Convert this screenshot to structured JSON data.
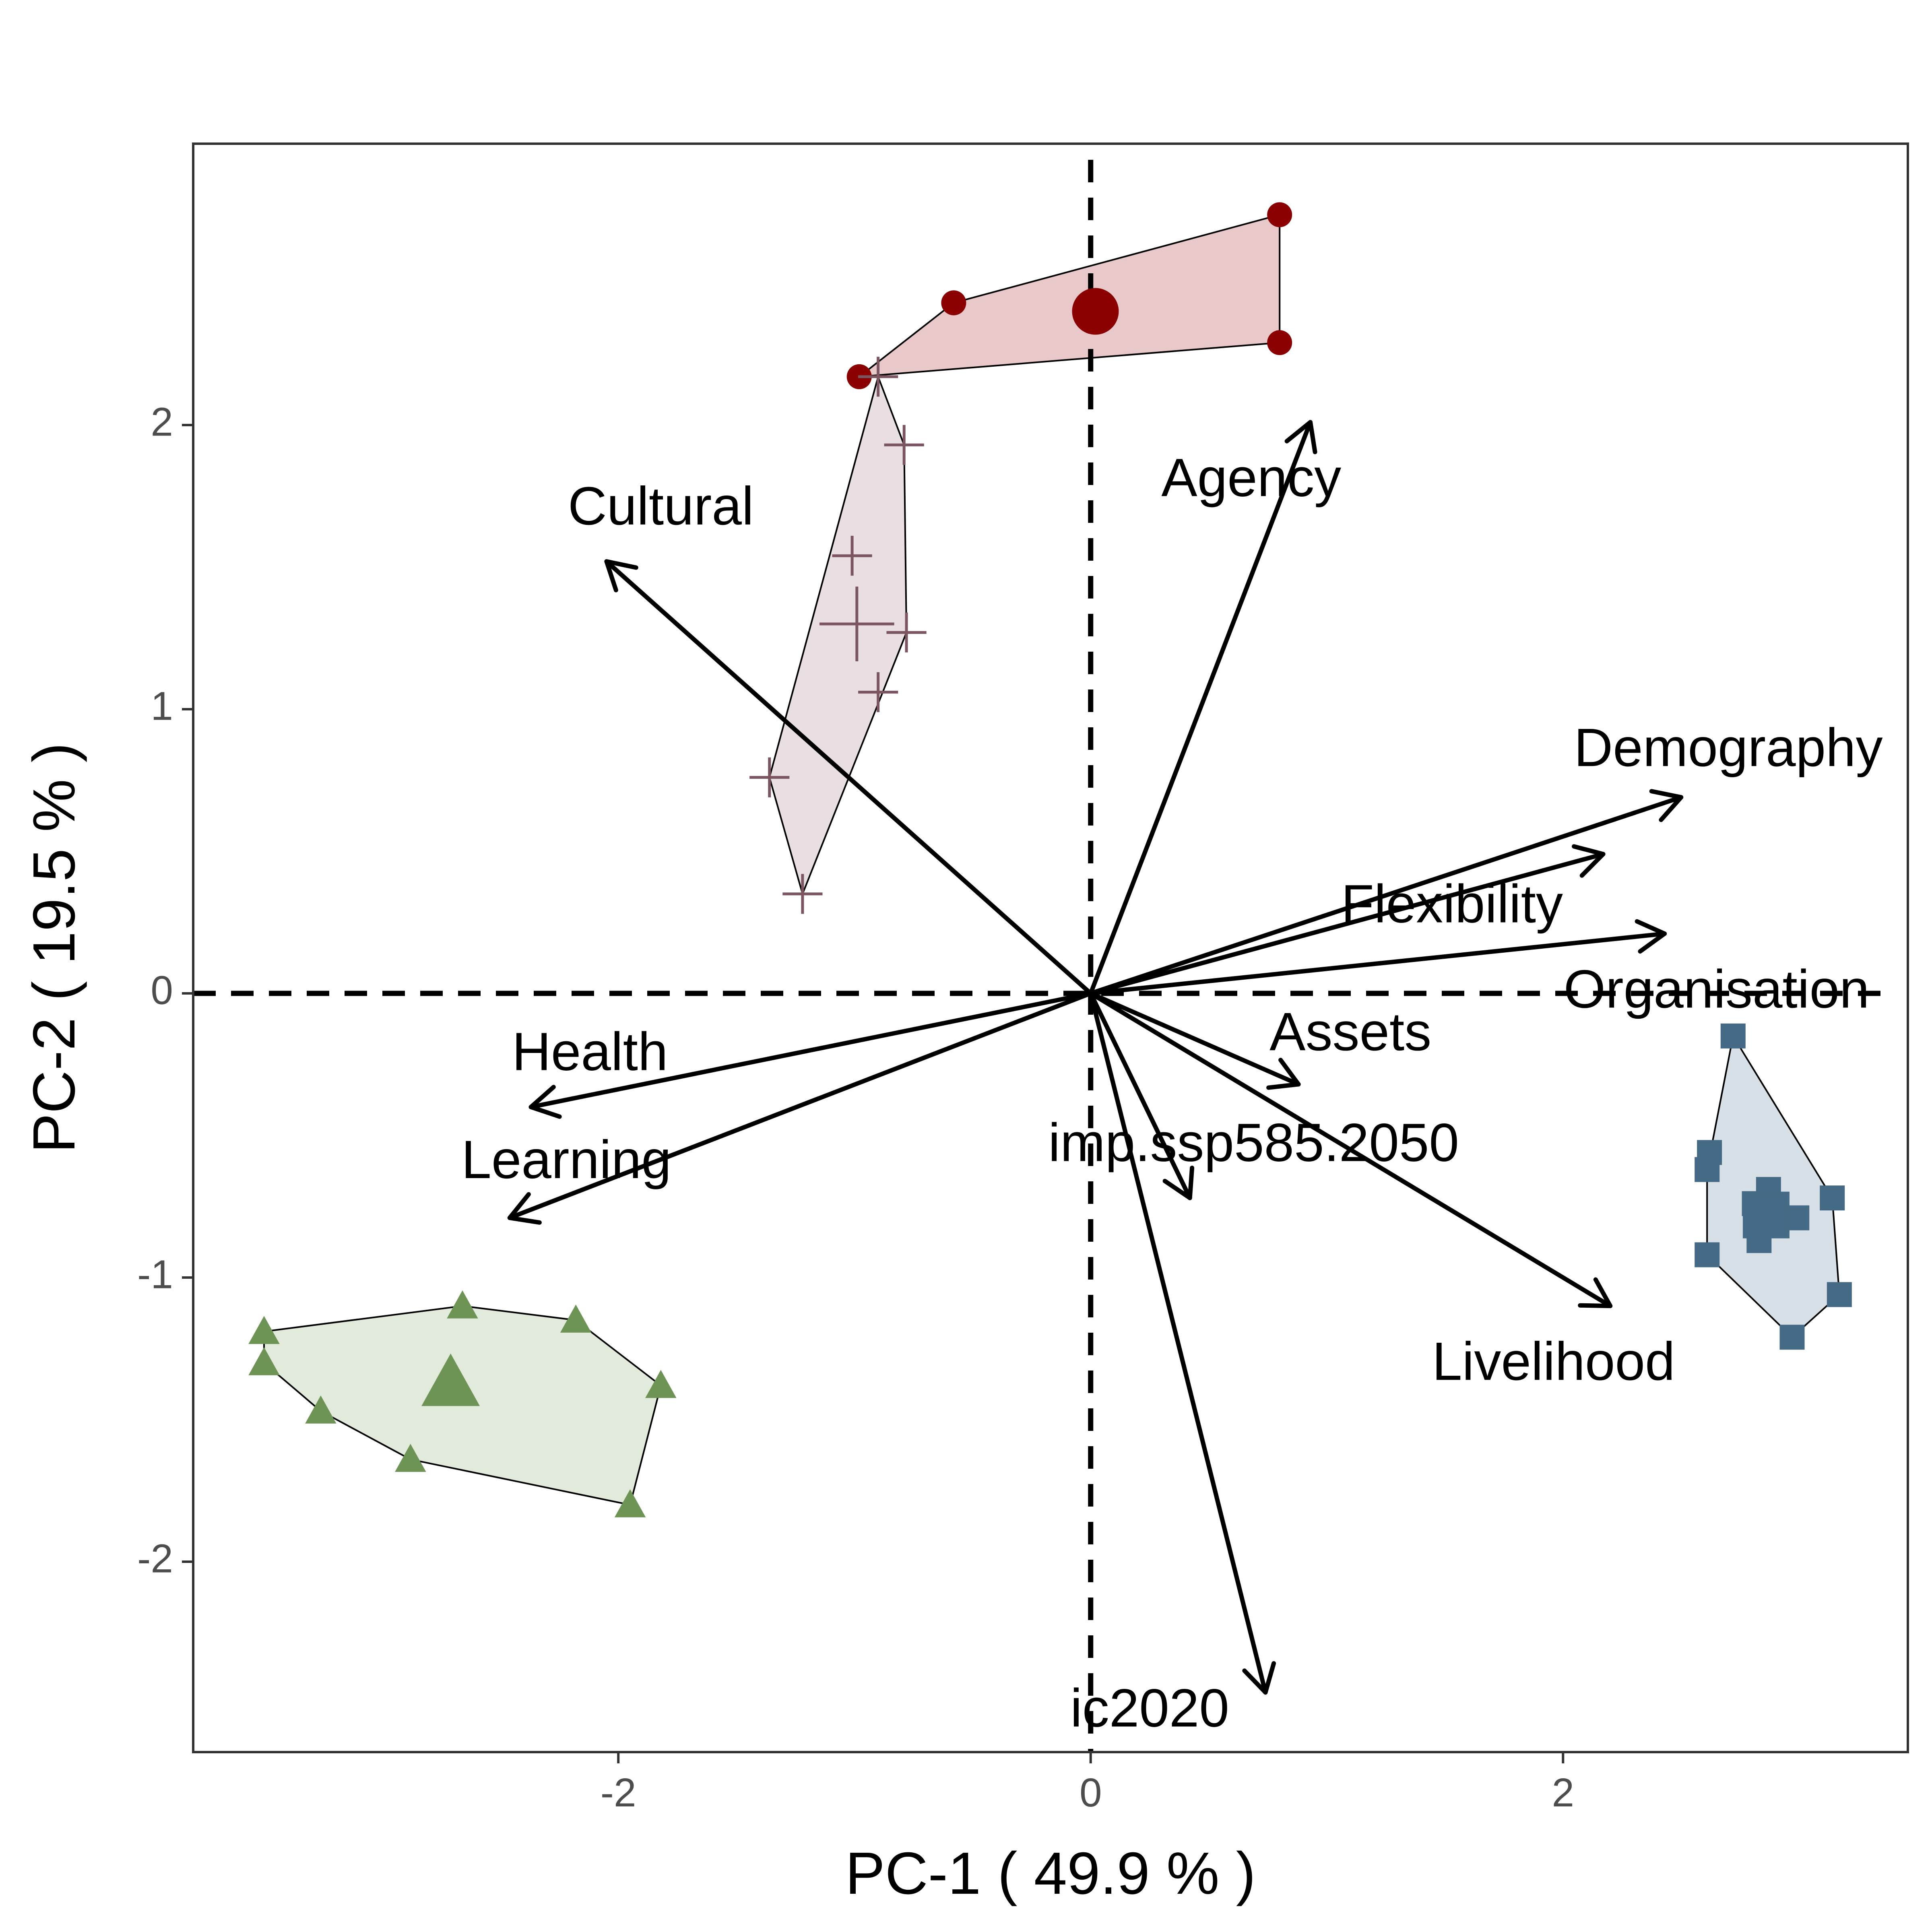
{
  "chart_data": {
    "type": "scatter",
    "subtype": "pca-biplot",
    "title": "",
    "xlabel": "PC-1 ( 49.9 % )",
    "ylabel": "PC-2 ( 19.5 % )",
    "xlim": [
      -3.8,
      3.46
    ],
    "ylim": [
      -2.67,
      2.99
    ],
    "xticks": [
      -2,
      0,
      2
    ],
    "xtick_labels": [
      "-2",
      "0",
      "2"
    ],
    "yticks": [
      -2,
      -1,
      0,
      1,
      2
    ],
    "ytick_labels": [
      "-2",
      "-1",
      "0",
      "1",
      "2"
    ],
    "grid": false,
    "legend": "none",
    "reference_lines": [
      {
        "axis": "x",
        "value": 0,
        "style": "dashed"
      },
      {
        "axis": "y",
        "value": 0,
        "style": "dashed"
      }
    ],
    "groups": [
      {
        "marker": "circle",
        "color": "#8b0000",
        "fill": "#e8c8c8",
        "points": [
          [
            0.8,
            2.74
          ],
          [
            -0.58,
            2.43
          ],
          [
            0.8,
            2.29
          ],
          [
            -0.98,
            2.17
          ]
        ],
        "hull": [
          [
            -0.98,
            2.17
          ],
          [
            -0.58,
            2.43
          ],
          [
            0.8,
            2.74
          ],
          [
            0.8,
            2.29
          ]
        ],
        "centroid": [
          0.02,
          2.4
        ]
      },
      {
        "marker": "cross",
        "color": "#7b5560",
        "fill": "#e9dfe2",
        "points": [
          [
            -0.9,
            2.17
          ],
          [
            -0.79,
            1.93
          ],
          [
            -1.01,
            1.54
          ],
          [
            -0.78,
            1.27
          ],
          [
            -0.9,
            1.06
          ],
          [
            -1.36,
            0.76
          ],
          [
            -1.22,
            0.35
          ]
        ],
        "hull": [
          [
            -0.9,
            2.17
          ],
          [
            -0.79,
            1.93
          ],
          [
            -0.78,
            1.27
          ],
          [
            -1.22,
            0.35
          ],
          [
            -1.36,
            0.76
          ]
        ],
        "centroid": [
          -0.99,
          1.3
        ]
      },
      {
        "marker": "square",
        "color": "#456a85",
        "fill": "#d8e0e7",
        "points": [
          [
            2.72,
            -0.15
          ],
          [
            2.62,
            -0.56
          ],
          [
            2.61,
            -0.62
          ],
          [
            3.14,
            -0.72
          ],
          [
            2.87,
            -0.69
          ],
          [
            2.81,
            -0.74
          ],
          [
            2.82,
            -0.8
          ],
          [
            2.99,
            -0.79
          ],
          [
            2.83,
            -0.87
          ],
          [
            2.61,
            -0.92
          ],
          [
            3.17,
            -1.06
          ],
          [
            2.97,
            -1.21
          ]
        ],
        "hull": [
          [
            2.72,
            -0.15
          ],
          [
            3.14,
            -0.72
          ],
          [
            3.17,
            -1.06
          ],
          [
            2.97,
            -1.21
          ],
          [
            2.61,
            -0.92
          ],
          [
            2.61,
            -0.62
          ]
        ],
        "centroid": [
          2.86,
          -0.78
        ]
      },
      {
        "marker": "triangle",
        "color": "#6d9455",
        "fill": "#e2eadc",
        "points": [
          [
            -2.66,
            -1.1
          ],
          [
            -2.18,
            -1.15
          ],
          [
            -3.5,
            -1.19
          ],
          [
            -3.5,
            -1.3
          ],
          [
            -1.82,
            -1.38
          ],
          [
            -3.26,
            -1.47
          ],
          [
            -2.88,
            -1.64
          ],
          [
            -1.95,
            -1.8
          ]
        ],
        "hull": [
          [
            -3.5,
            -1.19
          ],
          [
            -2.66,
            -1.1
          ],
          [
            -2.18,
            -1.15
          ],
          [
            -1.82,
            -1.38
          ],
          [
            -1.95,
            -1.8
          ],
          [
            -2.88,
            -1.64
          ],
          [
            -3.26,
            -1.47
          ],
          [
            -3.5,
            -1.3
          ]
        ],
        "centroid": [
          -2.71,
          -1.37
        ]
      }
    ],
    "loadings": [
      {
        "label": "Agency",
        "x": 0.93,
        "y": 2.01,
        "label_x": 0.68,
        "label_y": 1.8
      },
      {
        "label": "Cultural",
        "x": -2.05,
        "y": 1.52,
        "label_x": -1.82,
        "label_y": 1.7
      },
      {
        "label": "Demography",
        "x": 2.5,
        "y": 0.69,
        "label_x": 2.7,
        "label_y": 0.85
      },
      {
        "label": "Flexibility",
        "x": 2.17,
        "y": 0.49,
        "label_x": 1.53,
        "label_y": 0.3
      },
      {
        "label": "Organisation",
        "x": 2.43,
        "y": 0.21,
        "label_x": 2.65,
        "label_y": 0.0
      },
      {
        "label": "Assets",
        "x": 0.88,
        "y": -0.32,
        "label_x": 1.1,
        "label_y": -0.15
      },
      {
        "label": "imp.ssp585.2050",
        "x": 0.42,
        "y": -0.72,
        "label_x": 0.69,
        "label_y": -0.54
      },
      {
        "label": "Livelihood",
        "x": 2.2,
        "y": -1.1,
        "label_x": 1.96,
        "label_y": -1.31
      },
      {
        "label": "Health",
        "x": -2.37,
        "y": -0.4,
        "label_x": -2.12,
        "label_y": -0.22
      },
      {
        "label": "Learning",
        "x": -2.46,
        "y": -0.79,
        "label_x": -2.22,
        "label_y": -0.6
      },
      {
        "label": "ic2020",
        "x": 0.74,
        "y": -2.46,
        "label_x": 0.25,
        "label_y": -2.53
      }
    ]
  }
}
